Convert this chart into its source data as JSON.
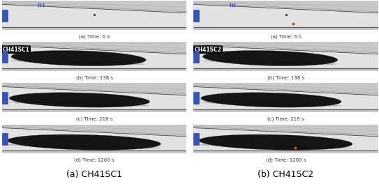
{
  "fig_width": 5.43,
  "fig_height": 2.67,
  "dpi": 100,
  "background_color": "#ffffff",
  "left_label": "(a) CH41SC1",
  "right_label": "(b) CH41SC2",
  "label_fontsize": 9,
  "sub_labels": [
    "(a) Time: 6 s",
    "(b) Time: 138 s",
    "(c) Time: 216 s",
    "(d) Time: 1200 s"
  ],
  "case_label_left": "CH41SC1",
  "case_label_right": "CH41SC2",
  "tunnel_outer_color": "#bbbbbb",
  "tunnel_inner_color": "#dedede",
  "smoke_color": "#0a0a0a",
  "blue_rect_color": "#3355bb",
  "orange_dot_color": "#cc5500",
  "blue_tick_color": "#3344cc",
  "sub_label_fontsize": 5.0,
  "case_label_fontsize": 5.5
}
